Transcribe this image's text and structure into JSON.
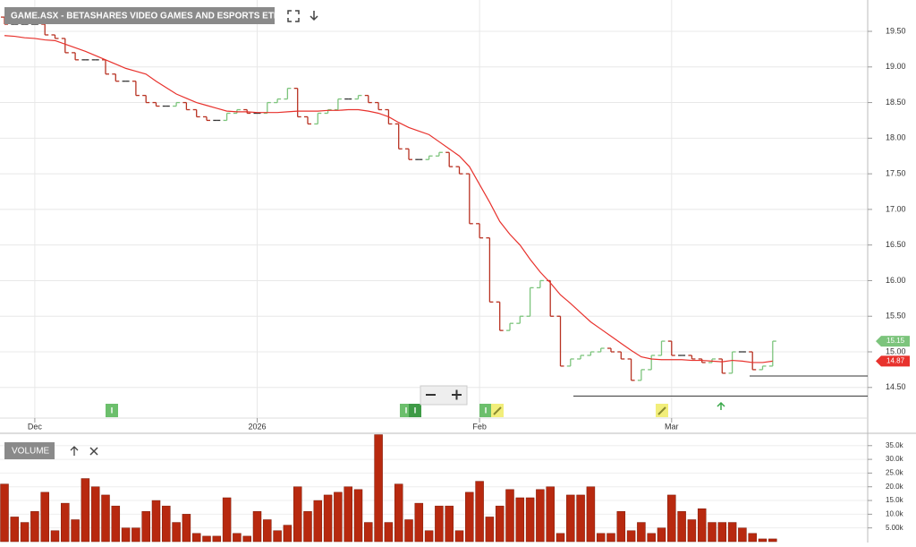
{
  "chart_data": [
    {
      "type": "ohlc",
      "title": "GAME.ASX - BETASHARES VIDEO GAMES AND ESPORTS ETF",
      "event_label": "I",
      "categories": [
        null,
        null,
        null,
        "Dec",
        null,
        null,
        null,
        null,
        null,
        null,
        null,
        null,
        null,
        null,
        null,
        null,
        null,
        null,
        null,
        null,
        null,
        null,
        null,
        null,
        null,
        "2026",
        null,
        null,
        null,
        null,
        null,
        null,
        null,
        null,
        null,
        null,
        null,
        null,
        null,
        null,
        null,
        null,
        null,
        null,
        null,
        null,
        null,
        "Feb",
        null,
        null,
        null,
        null,
        null,
        null,
        null,
        null,
        null,
        null,
        null,
        null,
        null,
        null,
        null,
        null,
        null,
        null,
        "Mar",
        null,
        null,
        null,
        null,
        null,
        null,
        null,
        null,
        null,
        null
      ],
      "open": [
        19.7,
        19.6,
        19.6,
        19.6,
        19.6,
        19.45,
        19.4,
        19.2,
        19.1,
        19.1,
        19.1,
        18.9,
        18.8,
        18.8,
        18.6,
        18.5,
        18.45,
        18.45,
        18.5,
        18.4,
        18.3,
        18.25,
        18.25,
        18.35,
        18.4,
        18.35,
        18.35,
        18.5,
        18.55,
        18.7,
        18.3,
        18.2,
        18.35,
        18.4,
        18.55,
        18.55,
        18.6,
        18.5,
        18.4,
        18.2,
        17.85,
        17.7,
        17.7,
        17.75,
        17.8,
        17.6,
        17.5,
        16.8,
        16.6,
        15.7,
        15.3,
        15.4,
        15.5,
        15.9,
        16.0,
        15.5,
        14.8,
        14.9,
        14.95,
        15.0,
        15.05,
        15.0,
        14.9,
        14.6,
        14.75,
        14.95,
        15.15,
        14.95,
        14.95,
        14.9,
        14.85,
        14.9,
        14.7,
        15.0,
        15.0,
        14.75,
        14.8
      ],
      "close": [
        19.6,
        19.6,
        19.6,
        19.6,
        19.45,
        19.4,
        19.2,
        19.1,
        19.1,
        19.1,
        18.9,
        18.8,
        18.8,
        18.6,
        18.5,
        18.45,
        18.45,
        18.5,
        18.4,
        18.3,
        18.25,
        18.25,
        18.35,
        18.4,
        18.35,
        18.35,
        18.5,
        18.55,
        18.7,
        18.3,
        18.2,
        18.35,
        18.4,
        18.55,
        18.55,
        18.6,
        18.5,
        18.4,
        18.2,
        17.85,
        17.7,
        17.7,
        17.75,
        17.8,
        17.6,
        17.5,
        16.8,
        16.6,
        15.7,
        15.3,
        15.4,
        15.5,
        15.9,
        16.0,
        15.5,
        14.8,
        14.9,
        14.95,
        15.0,
        15.05,
        15.0,
        14.9,
        14.6,
        14.75,
        14.95,
        15.15,
        14.95,
        14.95,
        14.9,
        14.85,
        14.9,
        14.7,
        15.0,
        15.0,
        14.75,
        14.8,
        15.15
      ],
      "up_color": "#7cc47c",
      "down_color": "#b83222",
      "flat_color": "#333333",
      "moving_average": {
        "color": "#e8322d",
        "values": [
          19.44,
          19.43,
          19.41,
          19.4,
          19.38,
          19.37,
          19.32,
          19.27,
          19.22,
          19.16,
          19.1,
          19.04,
          18.98,
          18.94,
          18.9,
          18.8,
          18.71,
          18.62,
          18.56,
          18.5,
          18.46,
          18.42,
          18.38,
          18.37,
          18.37,
          18.36,
          18.36,
          18.36,
          18.37,
          18.38,
          18.38,
          18.38,
          18.39,
          18.39,
          18.4,
          18.4,
          18.38,
          18.35,
          18.3,
          18.22,
          18.15,
          18.1,
          18.05,
          17.95,
          17.85,
          17.75,
          17.6,
          17.35,
          17.1,
          16.83,
          16.65,
          16.5,
          16.3,
          16.12,
          15.97,
          15.8,
          15.68,
          15.55,
          15.42,
          15.32,
          15.22,
          15.12,
          15.02,
          14.93,
          14.9,
          14.89,
          14.89,
          14.89,
          14.88,
          14.88,
          14.87,
          14.86,
          14.88,
          14.87,
          14.85,
          14.85,
          14.87
        ]
      },
      "reference_lines": [
        14.66,
        14.38
      ],
      "ylim": [
        14.07,
        19.94
      ],
      "yticks": [
        {
          "value": 14.5,
          "label": "14.50"
        },
        {
          "value": 15,
          "label": "15.00"
        },
        {
          "value": 15.5,
          "label": "15.50"
        },
        {
          "value": 16,
          "label": "16.00"
        },
        {
          "value": 16.5,
          "label": "16.50"
        },
        {
          "value": 17,
          "label": "17.00"
        },
        {
          "value": 17.5,
          "label": "17.50"
        },
        {
          "value": 18,
          "label": "18.00"
        },
        {
          "value": 18.5,
          "label": "18.50"
        },
        {
          "value": 19,
          "label": "19.00"
        },
        {
          "value": 19.5,
          "label": "19.50"
        }
      ],
      "grid": true
    },
    {
      "type": "bar",
      "title": "VOLUME",
      "color": "#b8290f",
      "values": [
        21000,
        9000,
        7000,
        11000,
        18000,
        4000,
        14000,
        8000,
        23000,
        20000,
        17000,
        13000,
        5000,
        5000,
        11000,
        15000,
        13000,
        7000,
        10000,
        3000,
        2000,
        2000,
        16000,
        3000,
        2000,
        11000,
        8000,
        4000,
        6000,
        20000,
        11000,
        15000,
        17000,
        18000,
        20000,
        19000,
        7000,
        39000,
        7000,
        21000,
        8000,
        14000,
        4000,
        13000,
        13000,
        4000,
        18000,
        22000,
        9000,
        13000,
        19000,
        16000,
        16000,
        19000,
        20000,
        3000,
        17000,
        17000,
        20000,
        3000,
        3000,
        11000,
        4000,
        7000,
        3000,
        5000,
        17000,
        11000,
        8000,
        12000,
        7000,
        7000,
        7000,
        5000,
        3000,
        1000,
        1000
      ],
      "ylim": [
        0,
        39500
      ],
      "yticks": [
        {
          "value": 5000,
          "label": "5.00k"
        },
        {
          "value": 10000,
          "label": "10.0k"
        },
        {
          "value": 15000,
          "label": "15.0k"
        },
        {
          "value": 20000,
          "label": "20.0k"
        },
        {
          "value": 25000,
          "label": "25.0k"
        },
        {
          "value": 30000,
          "label": "30.0k"
        },
        {
          "value": 35000,
          "label": "35.0k"
        }
      ],
      "grid": true
    }
  ]
}
